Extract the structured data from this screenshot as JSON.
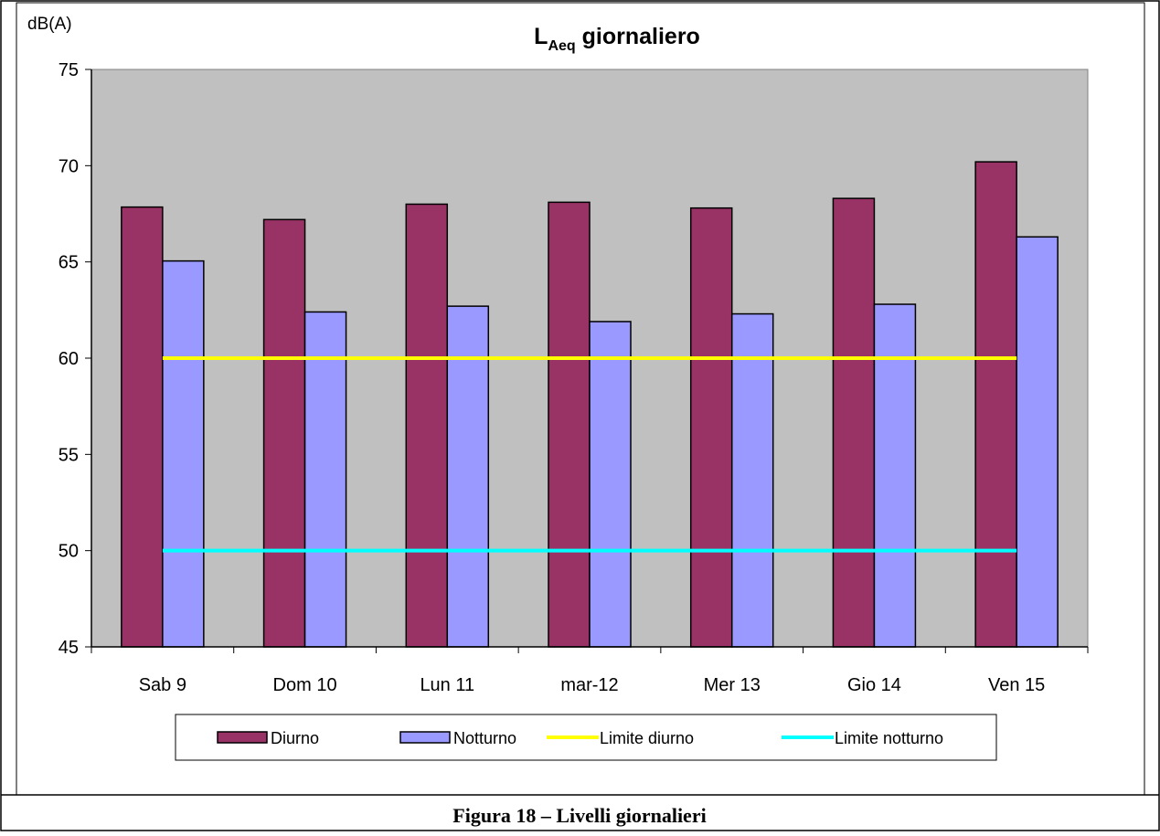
{
  "chart_data": {
    "type": "bar",
    "title": {
      "main": "L",
      "subscript": "Aeq",
      "rest": " giornaliero"
    },
    "ylabel": "dB(A)",
    "categories": [
      "Sab 9",
      "Dom 10",
      "Lun 11",
      "mar-12",
      "Mer 13",
      "Gio 14",
      "Ven 15"
    ],
    "series": [
      {
        "name": "Diurno",
        "type": "bar",
        "color": "#993366",
        "values": [
          67.85,
          67.2,
          68.0,
          68.1,
          67.8,
          68.3,
          70.2
        ]
      },
      {
        "name": "Notturno",
        "type": "bar",
        "color": "#9999ff",
        "values": [
          65.05,
          62.4,
          62.7,
          61.9,
          62.3,
          62.8,
          66.3
        ]
      },
      {
        "name": "Limite diurno",
        "type": "line",
        "color": "#ffff00",
        "values": [
          60,
          60,
          60,
          60,
          60,
          60,
          60
        ]
      },
      {
        "name": "Limite notturno",
        "type": "line",
        "color": "#00ffff",
        "values": [
          50,
          50,
          50,
          50,
          50,
          50,
          50
        ]
      }
    ],
    "ylim": [
      45,
      75
    ],
    "yticks": [
      45,
      50,
      55,
      60,
      65,
      70,
      75
    ],
    "grid": false,
    "legend": "bottom",
    "plot_background": "#c0c0c0"
  },
  "caption": "Figura 18 – Livelli giornalieri"
}
